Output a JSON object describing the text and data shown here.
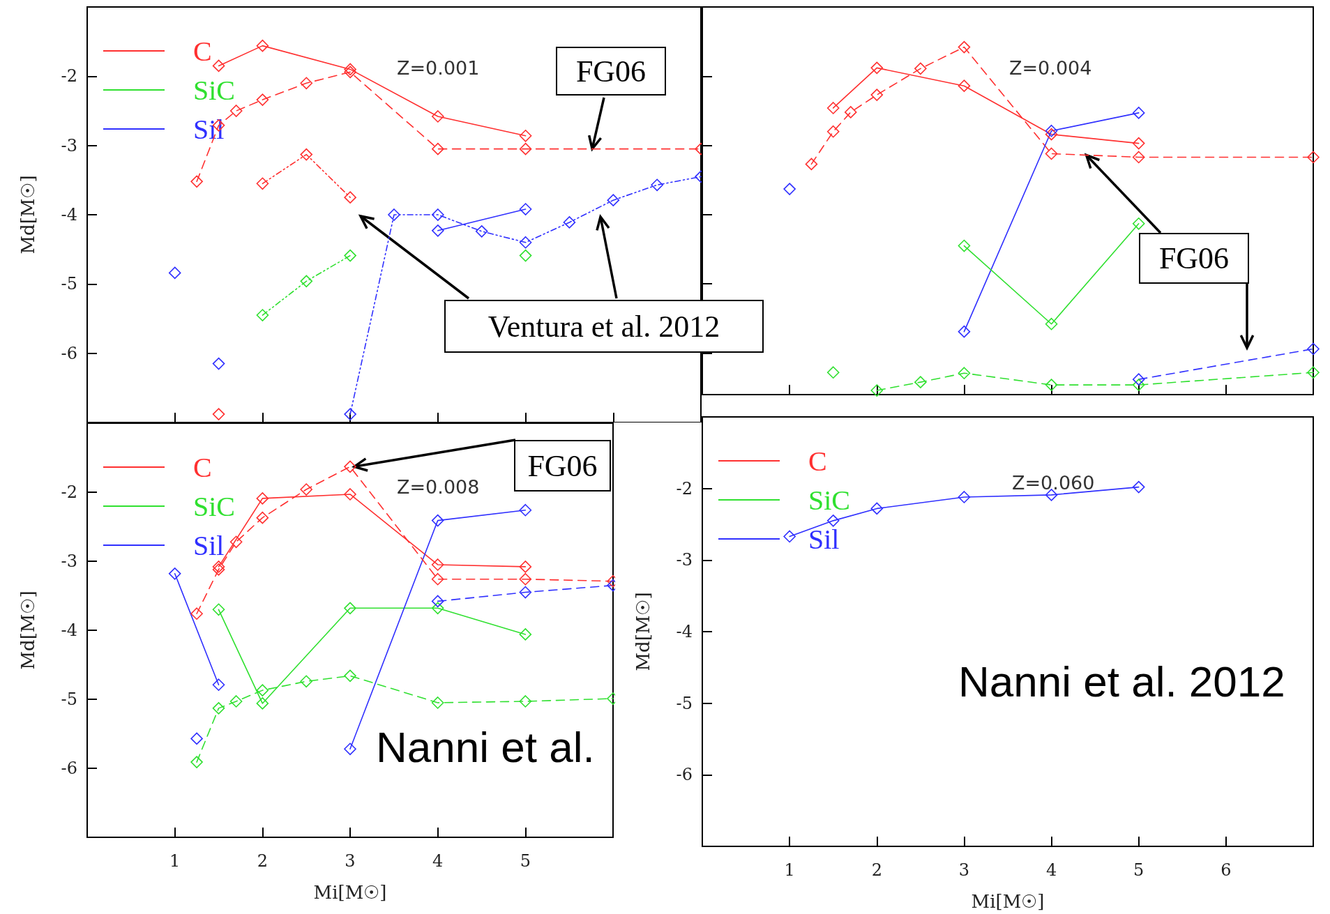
{
  "chart_data": [
    {
      "type": "line",
      "xlim": [
        0,
        7
      ],
      "ylim": [
        -7,
        -1
      ],
      "xticks": [
        1,
        2,
        3,
        4,
        5,
        6
      ],
      "yticks": [
        -6,
        -5,
        -4,
        -3,
        -2
      ],
      "ylabel": "Md[M☉]",
      "tick_labels": "y",
      "legend": "top left",
      "marker": "diamond",
      "annotations": [
        "Z=0.001",
        {
          "text": "FG06",
          "x": 5.76,
          "y": -3.05
        },
        "Ventura et al. 2012"
      ],
      "series": [
        {
          "name": "C",
          "color": "#ff3030",
          "line_style": "solid",
          "x": [
            1.5,
            2,
            3,
            4,
            5
          ],
          "values": [
            -1.85,
            -1.56,
            -1.9,
            -2.58,
            -2.86
          ]
        },
        {
          "name": "SiC",
          "color": "#30e030",
          "line_style": "solid",
          "x": [
            5
          ],
          "values": [
            -4.59
          ]
        },
        {
          "name": "Sil",
          "color": "#3030ff",
          "line_style": "solid",
          "x": [
            1,
            3.5,
            4,
            5
          ],
          "values": [
            -4.84,
            null,
            -4.23,
            -3.92
          ]
        },
        {
          "color": "#ff3030",
          "line_style": "dashed",
          "x": [
            1.25,
            1.5,
            1.7,
            2,
            2.5,
            3,
            4,
            5,
            7
          ],
          "values": [
            -3.52,
            -2.71,
            -2.5,
            -2.34,
            -2.1,
            -1.94,
            -3.05,
            -3.05,
            -3.05
          ]
        },
        {
          "color": "#ff3030",
          "line_style": "dotted",
          "x": [
            1.5,
            1.75,
            2,
            2.5,
            3
          ],
          "values": [
            -6.88,
            null,
            -3.55,
            -3.13,
            -3.75
          ]
        },
        {
          "color": "#30e030",
          "line_style": "dotted",
          "x": [
            2,
            2.5,
            3
          ],
          "values": [
            -5.45,
            -4.96,
            -4.59
          ]
        },
        {
          "color": "#3030ff",
          "line_style": "dotted",
          "x": [
            1.5,
            2,
            3,
            3.5,
            4,
            4.5,
            5,
            5.5,
            6,
            6.5,
            7
          ],
          "values": [
            -6.15,
            null,
            -6.88,
            -4.0,
            -4.0,
            -4.24,
            -4.4,
            -4.11,
            -3.79,
            -3.57,
            -3.45
          ]
        }
      ]
    },
    {
      "type": "line",
      "xlim": [
        0,
        7
      ],
      "ylim": [
        -6.6,
        -1
      ],
      "xticks": [
        1,
        2,
        3,
        4,
        5,
        6
      ],
      "yticks": [
        -6,
        -5,
        -4,
        -3,
        -2
      ],
      "tick_labels": false,
      "marker": "diamond",
      "annotations": [
        "Z=0.004",
        {
          "text": "FG06",
          "x": 4.4,
          "y": -3.14
        }
      ],
      "series": [
        {
          "color": "#ff3030",
          "line_style": "solid",
          "x": [
            1.5,
            2,
            3,
            4,
            5
          ],
          "values": [
            -2.46,
            -1.88,
            -2.14,
            -2.84,
            -2.97
          ]
        },
        {
          "color": "#ff3030",
          "line_style": "dashed",
          "x": [
            1.25,
            1.5,
            1.7,
            2,
            2.5,
            3,
            4,
            5,
            7
          ],
          "values": [
            -3.27,
            -2.8,
            -2.52,
            -2.27,
            -1.89,
            -1.58,
            -3.12,
            -3.17,
            -3.17
          ]
        },
        {
          "color": "#3030ff",
          "line_style": "solid",
          "x": [
            1,
            2,
            3,
            4,
            5
          ],
          "values": [
            -3.63,
            null,
            -5.69,
            -2.79,
            -2.53
          ]
        },
        {
          "color": "#30e030",
          "line_style": "solid",
          "x": [
            1.5,
            2.5,
            3,
            4,
            5
          ],
          "values": [
            -6.28,
            null,
            -4.45,
            -5.58,
            -4.13
          ]
        },
        {
          "color": "#30e030",
          "line_style": "dashed",
          "x": [
            2,
            2.5,
            3,
            4,
            5,
            7
          ],
          "values": [
            -6.54,
            -6.42,
            -6.29,
            -6.46,
            -6.46,
            -6.28
          ]
        },
        {
          "color": "#3030ff",
          "line_style": "dashed",
          "x": [
            5,
            7
          ],
          "values": [
            -6.38,
            -5.94
          ]
        }
      ]
    },
    {
      "type": "line",
      "xlim": [
        0,
        6
      ],
      "ylim": [
        -7,
        -1
      ],
      "xticks": [
        1,
        2,
        3,
        4,
        5
      ],
      "yticks": [
        -6,
        -5,
        -4,
        -3,
        -2
      ],
      "xlabel": "Mi[M☉]",
      "ylabel": "Md[M☉]",
      "legend": "top left",
      "marker": "diamond",
      "annotations": [
        "Z=0.008",
        {
          "text": "FG06",
          "x": 3,
          "y": -1.63
        },
        "Nanni et al."
      ],
      "series": [
        {
          "name": "C",
          "color": "#ff3030",
          "line_style": "solid",
          "x": [
            1.5,
            2,
            3,
            4,
            5
          ],
          "values": [
            -3.08,
            -2.09,
            -2.03,
            -3.05,
            -3.08
          ]
        },
        {
          "name": "SiC",
          "color": "#30e030",
          "line_style": "solid",
          "x": [
            1.5,
            2,
            3,
            4,
            5
          ],
          "values": [
            -3.7,
            -5.06,
            -3.68,
            -3.68,
            -4.06
          ]
        },
        {
          "name": "Sil",
          "color": "#3030ff",
          "line_style": "solid",
          "x": [
            1,
            1.5,
            2,
            3,
            4,
            5
          ],
          "values": [
            -3.18,
            -4.79,
            null,
            -5.72,
            -2.41,
            -2.26
          ]
        },
        {
          "color": "#ff3030",
          "line_style": "dashed",
          "x": [
            1.25,
            1.5,
            1.7,
            2,
            2.5,
            3,
            4,
            5,
            6
          ],
          "values": [
            -3.76,
            -3.12,
            -2.72,
            -2.37,
            -1.96,
            -1.63,
            -3.26,
            -3.26,
            -3.29
          ]
        },
        {
          "color": "#30e030",
          "line_style": "dashed",
          "x": [
            1.25,
            1.5,
            1.7,
            2,
            2.5,
            3,
            4,
            5,
            6
          ],
          "values": [
            -5.91,
            -5.13,
            -5.03,
            -4.87,
            -4.74,
            -4.66,
            -5.05,
            -5.03,
            -4.99
          ]
        },
        {
          "color": "#3030ff",
          "line_style": "dashed",
          "x": [
            1.25,
            2,
            4,
            5,
            6
          ],
          "values": [
            -5.57,
            null,
            -3.58,
            -3.45,
            -3.35
          ]
        }
      ]
    },
    {
      "type": "line",
      "xlim": [
        0,
        7
      ],
      "ylim": [
        -7,
        -1
      ],
      "xticks": [
        1,
        2,
        3,
        4,
        5,
        6
      ],
      "yticks": [
        -6,
        -5,
        -4,
        -3,
        -2
      ],
      "xlabel": "Mi[M☉]",
      "ylabel": "Md[M☉]",
      "legend": "top left",
      "marker": "diamond",
      "annotations": [
        "Z=0.060",
        "Nanni et al. 2012"
      ],
      "series": [
        {
          "name": "C",
          "color": "#ff3030",
          "line_style": "solid"
        },
        {
          "name": "SiC",
          "color": "#30e030",
          "line_style": "solid"
        },
        {
          "name": "Sil",
          "color": "#3030ff",
          "line_style": "solid",
          "x": [
            1,
            1.5,
            2,
            3,
            4,
            5
          ],
          "values": [
            -2.67,
            -2.45,
            -2.28,
            -2.12,
            -2.09,
            -1.98
          ]
        }
      ]
    }
  ]
}
